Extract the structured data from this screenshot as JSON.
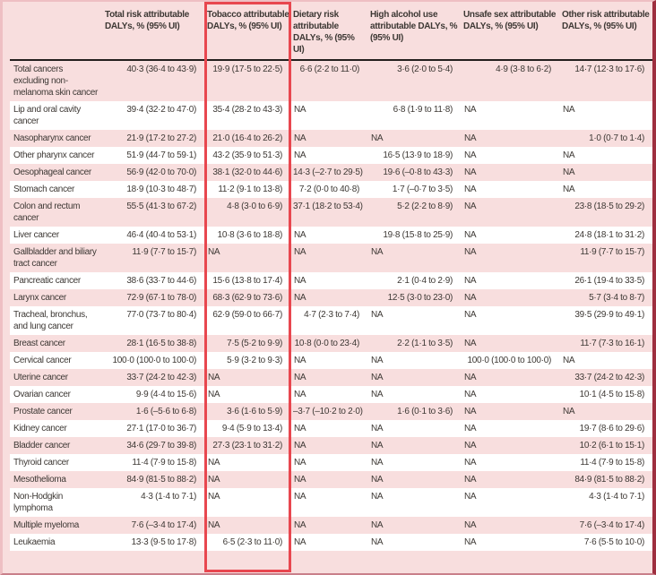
{
  "colors": {
    "page_pink": "#f8dede",
    "stripe_white": "#ffffff",
    "text": "#3d3834",
    "header_rule": "#231f1d",
    "highlight_red": "#e8474f",
    "frame_maroon": "#9e2f3f"
  },
  "table": {
    "columns": [
      {
        "key": "label",
        "label": ""
      },
      {
        "key": "total",
        "label": "Total risk attributable DALYs, % (95% UI)"
      },
      {
        "key": "tobacco",
        "label": "Tobacco attributable DALYs, % (95% UI)",
        "highlighted": true
      },
      {
        "key": "dietary",
        "label": "Dietary risk attributable DALYs, % (95% UI)"
      },
      {
        "key": "alcohol",
        "label": "High alcohol use attributable DALYs, % (95% UI)"
      },
      {
        "key": "unsafe_sex",
        "label": "Unsafe sex attributable DALYs, % (95% UI)"
      },
      {
        "key": "other",
        "label": "Other risk attributable DALYs, % (95% UI)"
      }
    ],
    "na_text": "NA",
    "rows": [
      {
        "label": "Total cancers excluding non-melanoma skin cancer",
        "total": "40·3 (36·4 to 43·9)",
        "tobacco": "19·9 (17·5 to 22·5)",
        "dietary": "6·6 (2·2 to 11·0)",
        "alcohol": "3·6 (2·0 to 5·4)",
        "unsafe_sex": "4·9 (3·8 to 6·2)",
        "other": "14·7 (12·3 to 17·6)"
      },
      {
        "label": "Lip and oral cavity cancer",
        "total": "39·4 (32·2 to 47·0)",
        "tobacco": "35·4 (28·2 to 43·3)",
        "dietary": "NA",
        "alcohol": "6·8 (1·9 to 11·8)",
        "unsafe_sex": "NA",
        "other": "NA"
      },
      {
        "label": "Nasopharynx cancer",
        "total": "21·9 (17·2 to 27·2)",
        "tobacco": "21·0 (16·4 to 26·2)",
        "dietary": "NA",
        "alcohol": "NA",
        "unsafe_sex": "NA",
        "other": "1·0 (0·7 to 1·4)"
      },
      {
        "label": "Other pharynx cancer",
        "total": "51·9 (44·7 to 59·1)",
        "tobacco": "43·2 (35·9 to 51·3)",
        "dietary": "NA",
        "alcohol": "16·5 (13·9 to 18·9)",
        "unsafe_sex": "NA",
        "other": "NA"
      },
      {
        "label": "Oesophageal cancer",
        "total": "56·9 (42·0 to 70·0)",
        "tobacco": "38·1 (32·0 to 44·6)",
        "dietary": "14·3 (–2·7 to 29·5)",
        "alcohol": "19·6 (–0·8 to 43·3)",
        "unsafe_sex": "NA",
        "other": "NA"
      },
      {
        "label": "Stomach cancer",
        "total": "18·9 (10·3 to 48·7)",
        "tobacco": "11·2 (9·1 to 13·8)",
        "dietary": "7·2 (0·0 to 40·8)",
        "alcohol": "1·7 (–0·7 to 3·5)",
        "unsafe_sex": "NA",
        "other": "NA"
      },
      {
        "label": "Colon and rectum cancer",
        "total": "55·5 (41·3 to 67·2)",
        "tobacco": "4·8 (3·0 to 6·9)",
        "dietary": "37·1 (18·2 to 53·4)",
        "alcohol": "5·2 (2·2 to 8·9)",
        "unsafe_sex": "NA",
        "other": "23·8 (18·5 to 29·2)"
      },
      {
        "label": "Liver cancer",
        "total": "46·4 (40·4 to 53·1)",
        "tobacco": "10·8 (3·6 to 18·8)",
        "dietary": "NA",
        "alcohol": "19·8 (15·8 to 25·9)",
        "unsafe_sex": "NA",
        "other": "24·8 (18·1 to 31·2)"
      },
      {
        "label": "Gallbladder and biliary tract cancer",
        "total": "11·9 (7·7 to 15·7)",
        "tobacco": "NA",
        "dietary": "NA",
        "alcohol": "NA",
        "unsafe_sex": "NA",
        "other": "11·9 (7·7 to 15·7)"
      },
      {
        "label": "Pancreatic cancer",
        "total": "38·6 (33·7 to 44·6)",
        "tobacco": "15·6 (13·8 to 17·4)",
        "dietary": "NA",
        "alcohol": "2·1 (0·4 to 2·9)",
        "unsafe_sex": "NA",
        "other": "26·1 (19·4 to 33·5)"
      },
      {
        "label": "Larynx cancer",
        "total": "72·9 (67·1 to 78·0)",
        "tobacco": "68·3 (62·9 to 73·6)",
        "dietary": "NA",
        "alcohol": "12·5 (3·0 to 23·0)",
        "unsafe_sex": "NA",
        "other": "5·7 (3·4 to 8·7)"
      },
      {
        "label": "Tracheal, bronchus, and lung cancer",
        "total": "77·0 (73·7 to 80·4)",
        "tobacco": "62·9 (59·0 to 66·7)",
        "dietary": "4·7 (2·3 to 7·4)",
        "alcohol": "NA",
        "unsafe_sex": "NA",
        "other": "39·5 (29·9 to 49·1)"
      },
      {
        "label": "Breast cancer",
        "total": "28·1 (16·5 to 38·8)",
        "tobacco": "7·5 (5·2 to 9·9)",
        "dietary": "10·8 (0·0 to 23·4)",
        "alcohol": "2·2 (1·1 to 3·5)",
        "unsafe_sex": "NA",
        "other": "11·7 (7·3 to 16·1)"
      },
      {
        "label": "Cervical cancer",
        "total": "100·0 (100·0 to 100·0)",
        "tobacco": "5·9 (3·2 to 9·3)",
        "dietary": "NA",
        "alcohol": "NA",
        "unsafe_sex": "100·0 (100·0 to 100·0)",
        "other": "NA"
      },
      {
        "label": "Uterine cancer",
        "total": "33·7 (24·2 to 42·3)",
        "tobacco": "NA",
        "dietary": "NA",
        "alcohol": "NA",
        "unsafe_sex": "NA",
        "other": "33·7 (24·2 to 42·3)"
      },
      {
        "label": "Ovarian cancer",
        "total": "9·9 (4·4 to 15·6)",
        "tobacco": "NA",
        "dietary": "NA",
        "alcohol": "NA",
        "unsafe_sex": "NA",
        "other": "10·1 (4·5 to 15·8)"
      },
      {
        "label": "Prostate cancer",
        "total": "1·6 (–5·6 to 6·8)",
        "tobacco": "3·6 (1·6 to 5·9)",
        "dietary": "–3·7 (–10·2 to 2·0)",
        "alcohol": "1·6 (0·1 to 3·6)",
        "unsafe_sex": "NA",
        "other": "NA"
      },
      {
        "label": "Kidney cancer",
        "total": "27·1 (17·0 to 36·7)",
        "tobacco": "9·4 (5·9 to 13·4)",
        "dietary": "NA",
        "alcohol": "NA",
        "unsafe_sex": "NA",
        "other": "19·7 (8·6 to 29·6)"
      },
      {
        "label": "Bladder cancer",
        "total": "34·6 (29·7 to 39·8)",
        "tobacco": "27·3 (23·1 to 31·2)",
        "dietary": "NA",
        "alcohol": "NA",
        "unsafe_sex": "NA",
        "other": "10·2 (6·1 to 15·1)"
      },
      {
        "label": "Thyroid cancer",
        "total": "11·4 (7·9 to 15·8)",
        "tobacco": "NA",
        "dietary": "NA",
        "alcohol": "NA",
        "unsafe_sex": "NA",
        "other": "11·4 (7·9 to 15·8)"
      },
      {
        "label": "Mesothelioma",
        "total": "84·9 (81·5 to 88·2)",
        "tobacco": "NA",
        "dietary": "NA",
        "alcohol": "NA",
        "unsafe_sex": "NA",
        "other": "84·9 (81·5 to 88·2)"
      },
      {
        "label": "Non-Hodgkin lymphoma",
        "total": "4·3 (1·4 to 7·1)",
        "tobacco": "NA",
        "dietary": "NA",
        "alcohol": "NA",
        "unsafe_sex": "NA",
        "other": "4·3 (1·4 to 7·1)"
      },
      {
        "label": "Multiple myeloma",
        "total": "7·6 (–3·4 to 17·4)",
        "tobacco": "NA",
        "dietary": "NA",
        "alcohol": "NA",
        "unsafe_sex": "NA",
        "other": "7·6 (–3·4 to 17·4)"
      },
      {
        "label": "Leukaemia",
        "total": "13·3 (9·5 to 17·8)",
        "tobacco": "6·5 (2·3 to 11·0)",
        "dietary": "NA",
        "alcohol": "NA",
        "unsafe_sex": "NA",
        "other": "7·6 (5·5 to 10·0)"
      }
    ]
  },
  "highlight": {
    "column": "tobacco"
  }
}
